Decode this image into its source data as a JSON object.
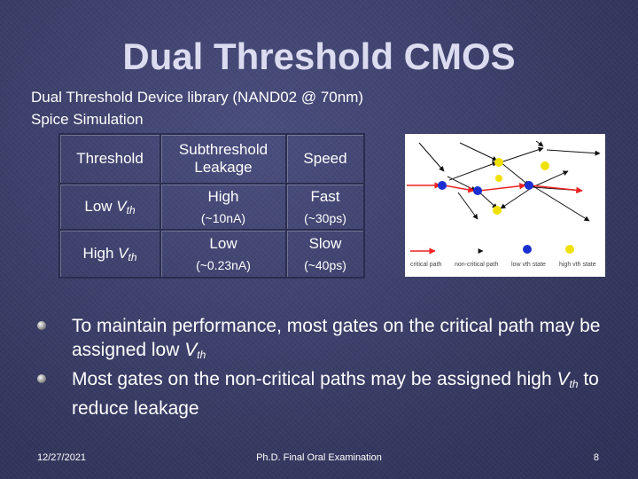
{
  "title": "Dual Threshold CMOS",
  "subhead": {
    "line1": "Dual Threshold Device library (NAND02 @ 70nm)",
    "line2": "Spice Simulation"
  },
  "table": {
    "headers": {
      "threshold": "Threshold",
      "leakage_line1": "Subthreshold",
      "leakage_line2": "Leakage",
      "speed": "Speed"
    },
    "rows": [
      {
        "v": "V",
        "vsub": "th",
        "vprefix": "Low ",
        "leak": "High",
        "leak_val": "(~10nA)",
        "speed": "Fast",
        "speed_val": "(~30ps)"
      },
      {
        "v": "V",
        "vsub": "th",
        "vprefix": "High ",
        "leak": "Low",
        "leak_val": "(~0.23nA)",
        "speed": "Slow",
        "speed_val": "(~40ps)"
      }
    ]
  },
  "diagram": {
    "legend": {
      "critical": "critical path",
      "noncritical": "non-critical path",
      "low": "low vth state",
      "high": "high vth state"
    },
    "colors": {
      "critical": "#ee2222",
      "low": "#1a2fd0",
      "high": "#f0e000",
      "line": "#111111"
    }
  },
  "bullets": [
    {
      "pre": "To maintain performance, most gates on the critical path may be assigned low ",
      "v": "V",
      "vsub": "th",
      "post": ""
    },
    {
      "pre": "Most gates on the non-critical paths may be assigned high ",
      "v": "V",
      "vsub": "th",
      "post": " to reduce leakage"
    }
  ],
  "footer": {
    "date": "12/27/2021",
    "center": "Ph.D. Final Oral Examination",
    "page": "8"
  }
}
